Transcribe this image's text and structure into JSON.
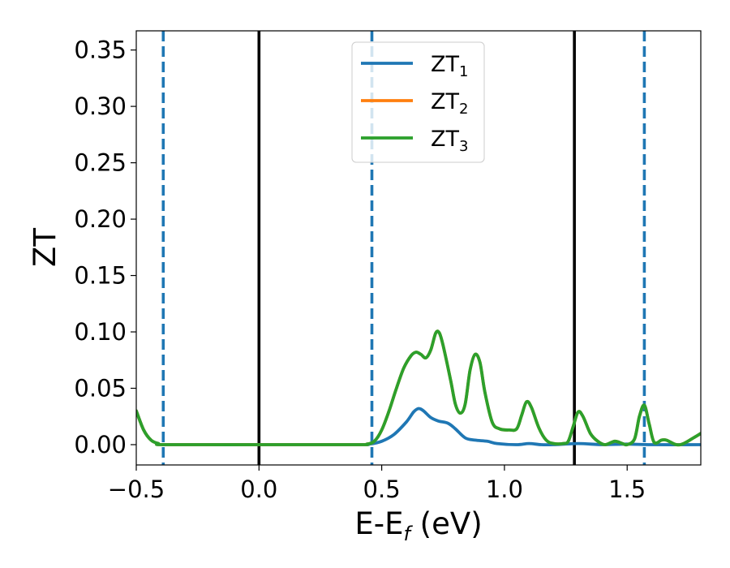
{
  "chart_data": {
    "type": "line",
    "xlabel_main": "E-E",
    "xlabel_sub": "f",
    "xlabel_unit": " (eV)",
    "ylabel": "ZT",
    "xlim": [
      -0.5,
      1.8
    ],
    "ylim": [
      -0.018,
      0.367
    ],
    "xticks": [
      -0.5,
      0.0,
      0.5,
      1.0,
      1.5
    ],
    "xtick_labels": [
      "−0.5",
      "0.0",
      "0.5",
      "1.0",
      "1.5"
    ],
    "yticks": [
      0.0,
      0.05,
      0.1,
      0.15,
      0.2,
      0.25,
      0.3,
      0.35
    ],
    "ytick_labels": [
      "0.00",
      "0.05",
      "0.10",
      "0.15",
      "0.20",
      "0.25",
      "0.30",
      "0.35"
    ],
    "grid": false,
    "legend_position": "top-center",
    "vlines_solid": [
      0.0,
      1.285
    ],
    "vlines_dashed": [
      -0.39,
      0.46,
      1.57
    ],
    "series": [
      {
        "name": "ZT",
        "sub": "1",
        "color": "#1f77b4",
        "points": [
          [
            -0.5,
            0.03
          ],
          [
            -0.47,
            0.013
          ],
          [
            -0.44,
            0.004
          ],
          [
            -0.41,
            0.001
          ],
          [
            -0.38,
            0.0
          ],
          [
            0.0,
            0.0
          ],
          [
            0.4,
            0.0
          ],
          [
            0.45,
            0.0005
          ],
          [
            0.5,
            0.003
          ],
          [
            0.55,
            0.009
          ],
          [
            0.6,
            0.02
          ],
          [
            0.63,
            0.029
          ],
          [
            0.65,
            0.032
          ],
          [
            0.67,
            0.03
          ],
          [
            0.7,
            0.024
          ],
          [
            0.73,
            0.021
          ],
          [
            0.77,
            0.019
          ],
          [
            0.8,
            0.014
          ],
          [
            0.84,
            0.006
          ],
          [
            0.88,
            0.004
          ],
          [
            0.93,
            0.003
          ],
          [
            0.97,
            0.001
          ],
          [
            1.05,
            0.0
          ],
          [
            1.1,
            0.001
          ],
          [
            1.15,
            0.0
          ],
          [
            1.2,
            0.0
          ],
          [
            1.3,
            0.001
          ],
          [
            1.4,
            0.0
          ],
          [
            1.5,
            0.0005
          ],
          [
            1.6,
            0.0
          ],
          [
            1.8,
            0.0
          ]
        ]
      },
      {
        "name": "ZT",
        "sub": "2",
        "color": "#ff7f0e",
        "points": [
          [
            -0.5,
            0.03
          ],
          [
            -0.47,
            0.013
          ],
          [
            -0.44,
            0.004
          ],
          [
            -0.41,
            0.001
          ],
          [
            -0.38,
            0.0
          ],
          [
            0.0,
            0.0
          ],
          [
            0.4,
            0.0
          ],
          [
            0.44,
            0.0005
          ],
          [
            0.47,
            0.003
          ],
          [
            0.5,
            0.013
          ],
          [
            0.53,
            0.03
          ],
          [
            0.56,
            0.05
          ],
          [
            0.59,
            0.068
          ],
          [
            0.62,
            0.079
          ],
          [
            0.64,
            0.082
          ],
          [
            0.66,
            0.08
          ],
          [
            0.68,
            0.077
          ],
          [
            0.7,
            0.084
          ],
          [
            0.72,
            0.099
          ],
          [
            0.735,
            0.099
          ],
          [
            0.75,
            0.088
          ],
          [
            0.78,
            0.058
          ],
          [
            0.8,
            0.036
          ],
          [
            0.82,
            0.028
          ],
          [
            0.84,
            0.036
          ],
          [
            0.86,
            0.066
          ],
          [
            0.88,
            0.08
          ],
          [
            0.9,
            0.073
          ],
          [
            0.92,
            0.047
          ],
          [
            0.95,
            0.02
          ],
          [
            0.98,
            0.014
          ],
          [
            1.02,
            0.013
          ],
          [
            1.05,
            0.014
          ],
          [
            1.07,
            0.026
          ],
          [
            1.09,
            0.038
          ],
          [
            1.11,
            0.033
          ],
          [
            1.14,
            0.015
          ],
          [
            1.17,
            0.004
          ],
          [
            1.2,
            0.001
          ],
          [
            1.24,
            0.001
          ],
          [
            1.26,
            0.003
          ],
          [
            1.28,
            0.016
          ],
          [
            1.3,
            0.029
          ],
          [
            1.32,
            0.025
          ],
          [
            1.35,
            0.01
          ],
          [
            1.38,
            0.003
          ],
          [
            1.41,
            0.0
          ],
          [
            1.45,
            0.003
          ],
          [
            1.48,
            0.001
          ],
          [
            1.5,
            0.0
          ],
          [
            1.53,
            0.005
          ],
          [
            1.55,
            0.025
          ],
          [
            1.57,
            0.035
          ],
          [
            1.59,
            0.018
          ],
          [
            1.61,
            0.002
          ],
          [
            1.64,
            0.004
          ],
          [
            1.66,
            0.004
          ],
          [
            1.7,
            0.0
          ],
          [
            1.73,
            0.001
          ],
          [
            1.77,
            0.006
          ],
          [
            1.8,
            0.01
          ]
        ]
      },
      {
        "name": "ZT",
        "sub": "3",
        "color": "#2ca02c",
        "points": [
          [
            -0.5,
            0.03
          ],
          [
            -0.47,
            0.013
          ],
          [
            -0.44,
            0.004
          ],
          [
            -0.41,
            0.001
          ],
          [
            -0.38,
            0.0
          ],
          [
            0.0,
            0.0
          ],
          [
            0.4,
            0.0
          ],
          [
            0.44,
            0.0005
          ],
          [
            0.47,
            0.003
          ],
          [
            0.5,
            0.013
          ],
          [
            0.53,
            0.03
          ],
          [
            0.56,
            0.05
          ],
          [
            0.59,
            0.068
          ],
          [
            0.62,
            0.079
          ],
          [
            0.64,
            0.082
          ],
          [
            0.66,
            0.08
          ],
          [
            0.68,
            0.077
          ],
          [
            0.7,
            0.084
          ],
          [
            0.72,
            0.099
          ],
          [
            0.735,
            0.099
          ],
          [
            0.75,
            0.088
          ],
          [
            0.78,
            0.058
          ],
          [
            0.8,
            0.036
          ],
          [
            0.82,
            0.028
          ],
          [
            0.84,
            0.036
          ],
          [
            0.86,
            0.066
          ],
          [
            0.88,
            0.08
          ],
          [
            0.9,
            0.073
          ],
          [
            0.92,
            0.047
          ],
          [
            0.95,
            0.02
          ],
          [
            0.98,
            0.014
          ],
          [
            1.02,
            0.013
          ],
          [
            1.05,
            0.014
          ],
          [
            1.07,
            0.026
          ],
          [
            1.09,
            0.038
          ],
          [
            1.11,
            0.033
          ],
          [
            1.14,
            0.015
          ],
          [
            1.17,
            0.004
          ],
          [
            1.2,
            0.001
          ],
          [
            1.24,
            0.001
          ],
          [
            1.26,
            0.003
          ],
          [
            1.28,
            0.016
          ],
          [
            1.3,
            0.029
          ],
          [
            1.32,
            0.025
          ],
          [
            1.35,
            0.01
          ],
          [
            1.38,
            0.003
          ],
          [
            1.41,
            0.0
          ],
          [
            1.45,
            0.003
          ],
          [
            1.48,
            0.001
          ],
          [
            1.5,
            0.0
          ],
          [
            1.53,
            0.005
          ],
          [
            1.55,
            0.025
          ],
          [
            1.57,
            0.035
          ],
          [
            1.59,
            0.018
          ],
          [
            1.61,
            0.002
          ],
          [
            1.64,
            0.004
          ],
          [
            1.66,
            0.004
          ],
          [
            1.7,
            0.0
          ],
          [
            1.73,
            0.001
          ],
          [
            1.77,
            0.006
          ],
          [
            1.8,
            0.01
          ]
        ]
      }
    ]
  }
}
